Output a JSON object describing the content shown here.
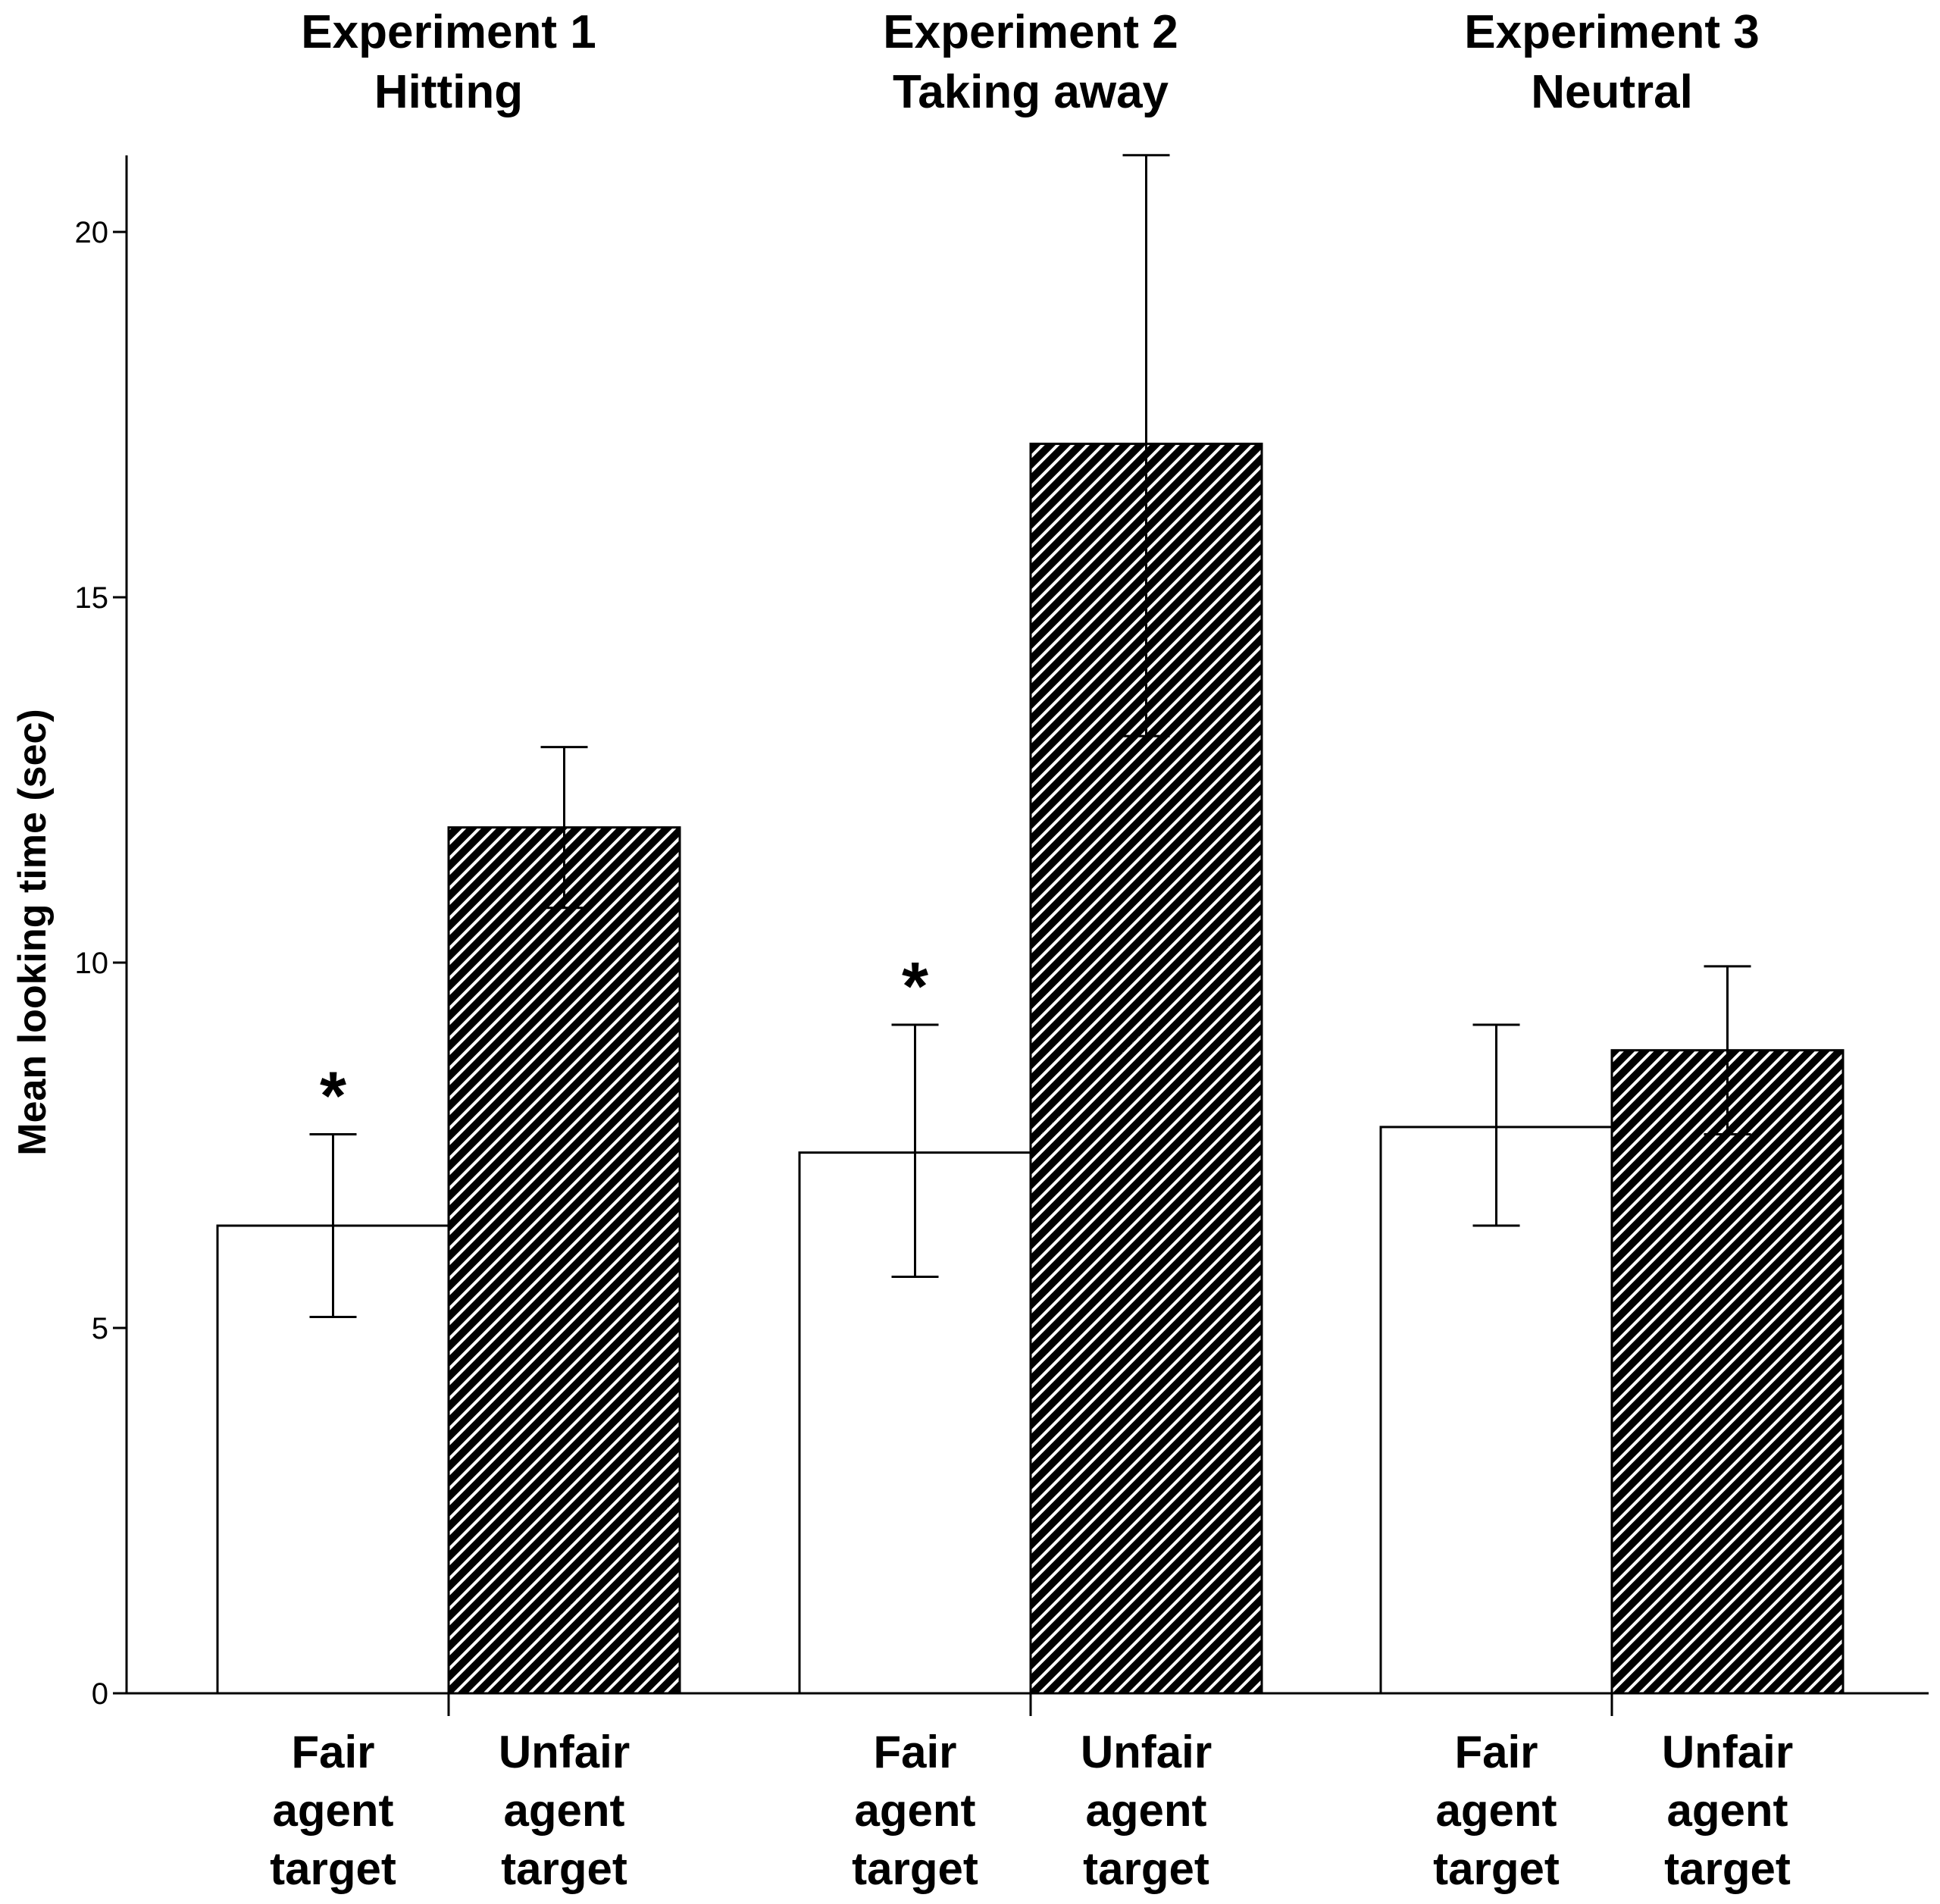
{
  "chart_data": {
    "type": "bar",
    "ylabel": "Mean looking time (sec)",
    "ylim": [
      0,
      21
    ],
    "yticks": [
      0,
      5,
      10,
      15,
      20
    ],
    "groups": [
      {
        "title_line1": "Experiment 1",
        "title_line2": "Hitting",
        "bars": [
          {
            "label": [
              "Fair",
              "agent",
              "target"
            ],
            "value": 6.4,
            "err_low": 5.15,
            "err_high": 7.65,
            "fill": "white",
            "significance": "*"
          },
          {
            "label": [
              "Unfair",
              "agent",
              "target"
            ],
            "value": 11.85,
            "err_low": 10.75,
            "err_high": 12.95,
            "fill": "hatched",
            "significance": ""
          }
        ]
      },
      {
        "title_line1": "Experiment 2",
        "title_line2": "Taking away",
        "bars": [
          {
            "label": [
              "Fair",
              "agent",
              "target"
            ],
            "value": 7.4,
            "err_low": 5.7,
            "err_high": 9.15,
            "fill": "white",
            "significance": "*"
          },
          {
            "label": [
              "Unfair",
              "agent",
              "target"
            ],
            "value": 17.1,
            "err_low": 13.1,
            "err_high": 21.05,
            "fill": "hatched",
            "significance": ""
          }
        ]
      },
      {
        "title_line1": "Experiment 3",
        "title_line2": "Neutral",
        "bars": [
          {
            "label": [
              "Fair",
              "agent",
              "target"
            ],
            "value": 7.75,
            "err_low": 6.4,
            "err_high": 9.15,
            "fill": "white",
            "significance": ""
          },
          {
            "label": [
              "Unfair",
              "agent",
              "target"
            ],
            "value": 8.8,
            "err_low": 7.65,
            "err_high": 9.95,
            "fill": "hatched",
            "significance": ""
          }
        ]
      }
    ]
  }
}
